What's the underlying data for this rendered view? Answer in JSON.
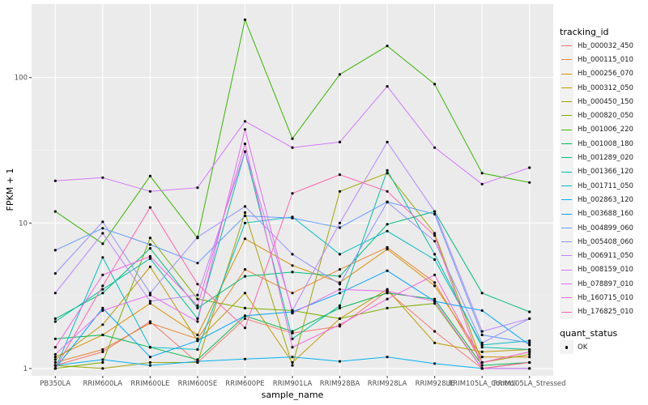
{
  "chart_data": {
    "type": "line",
    "xlabel": "sample_name",
    "ylabel": "FPKM + 1",
    "y_scale": "log10",
    "ylim": [
      0.89,
      320
    ],
    "y_ticks": [
      1,
      10,
      100
    ],
    "y_tick_labels": [
      "1",
      "10",
      "100"
    ],
    "grid": true,
    "legend_position": "right",
    "categories": [
      "PB350LA",
      "RRIM600LA",
      "RRIM600LE",
      "RRIM600SE",
      "RRIM600PE",
      "RRIM901LA",
      "RRIM928BA",
      "RRIM928LA",
      "RRIM928LE",
      "RRIM105LA_Control",
      "RRIM105LA_Stressed"
    ],
    "x_tick_labels": [
      "PB350LA",
      "RRIM600LA",
      "RRIM600LE",
      "RRIM600SE",
      "RRIM600PE",
      "RRIM901LA",
      "RRIM928BA",
      "RRIM928LA",
      "RRIM928LE",
      "RRIM105LA_Control",
      "RRIM105LA_Stressed"
    ],
    "series": [
      {
        "name": "Hb_000032_450",
        "color": "#F8766D",
        "values": [
          1.05,
          1.3,
          2.1,
          1.1,
          2.2,
          1.75,
          1.95,
          3.4,
          1.8,
          1.0,
          1.1
        ]
      },
      {
        "name": "Hb_000115_010",
        "color": "#EA8331",
        "values": [
          1.1,
          1.35,
          2.05,
          1.6,
          4.8,
          3.3,
          4.8,
          6.8,
          3.9,
          1.1,
          1.3
        ]
      },
      {
        "name": "Hb_000256_070",
        "color": "#D89000",
        "values": [
          1.2,
          1.7,
          2.8,
          1.7,
          7.8,
          5.1,
          3.9,
          6.6,
          3.7,
          1.2,
          1.2
        ]
      },
      {
        "name": "Hb_000312_050",
        "color": "#C09B00",
        "values": [
          1.15,
          2.0,
          5.0,
          1.55,
          3.3,
          1.1,
          2.2,
          3.5,
          1.5,
          1.3,
          1.35
        ]
      },
      {
        "name": "Hb_000450_150",
        "color": "#A3A500",
        "values": [
          1.05,
          1.0,
          1.1,
          1.1,
          11.8,
          1.05,
          16.5,
          22.0,
          8.5,
          1.1,
          1.25
        ]
      },
      {
        "name": "Hb_000820_050",
        "color": "#7CAE00",
        "values": [
          1.0,
          1.1,
          7.9,
          3.0,
          2.6,
          2.5,
          2.2,
          2.6,
          2.8,
          1.0,
          1.1
        ]
      },
      {
        "name": "Hb_001006_220",
        "color": "#39B600",
        "values": [
          12.0,
          7.2,
          21.0,
          7.9,
          250.0,
          38.0,
          105.0,
          165.0,
          90.0,
          22.0,
          19.0
        ]
      },
      {
        "name": "Hb_001008_180",
        "color": "#00BB4E",
        "values": [
          1.6,
          1.7,
          1.4,
          1.15,
          2.3,
          1.8,
          2.6,
          3.3,
          3.0,
          1.05,
          1.1
        ]
      },
      {
        "name": "Hb_001289_020",
        "color": "#00BF7D",
        "values": [
          2.2,
          3.3,
          6.7,
          2.6,
          4.3,
          4.6,
          4.3,
          9.8,
          12.0,
          3.3,
          2.45
        ]
      },
      {
        "name": "Hb_001366_120",
        "color": "#00C1A3",
        "values": [
          2.1,
          3.5,
          5.7,
          2.2,
          31.0,
          1.6,
          2.7,
          23.0,
          6.1,
          1.4,
          1.35
        ]
      },
      {
        "name": "Hb_001711_050",
        "color": "#00BFC4",
        "values": [
          1.0,
          5.8,
          1.4,
          1.35,
          10.0,
          11.0,
          6.1,
          8.8,
          5.6,
          1.45,
          1.55
        ]
      },
      {
        "name": "Hb_002863_120",
        "color": "#00B2F3",
        "values": [
          1.05,
          1.15,
          1.05,
          1.12,
          1.16,
          1.2,
          1.12,
          1.2,
          1.08,
          1.0,
          1.0
        ]
      },
      {
        "name": "Hb_003688_160",
        "color": "#00A5FF",
        "values": [
          1.0,
          2.6,
          1.2,
          1.55,
          2.3,
          2.45,
          3.3,
          4.7,
          2.9,
          2.5,
          1.45
        ]
      },
      {
        "name": "Hb_004899_060",
        "color": "#619CFF",
        "values": [
          6.5,
          9.2,
          7.1,
          5.3,
          11.2,
          10.8,
          9.3,
          14.0,
          11.5,
          1.7,
          1.5
        ]
      },
      {
        "name": "Hb_005408_060",
        "color": "#9590FF",
        "values": [
          4.5,
          10.2,
          3.3,
          8.0,
          13.0,
          6.1,
          3.8,
          13.9,
          7.5,
          1.5,
          2.2
        ]
      },
      {
        "name": "Hb_006911_050",
        "color": "#B983FF",
        "values": [
          3.3,
          8.5,
          2.9,
          3.2,
          31.0,
          2.5,
          10.0,
          36.0,
          12.0,
          1.8,
          2.2
        ]
      },
      {
        "name": "Hb_008159_010",
        "color": "#D575FE",
        "values": [
          19.5,
          20.5,
          16.5,
          17.5,
          50.0,
          33.0,
          36.0,
          87.0,
          33.0,
          18.5,
          24.0
        ]
      },
      {
        "name": "Hb_078897_010",
        "color": "#E76BF3",
        "values": [
          1.25,
          2.5,
          3.2,
          2.1,
          44.0,
          2.4,
          3.5,
          3.4,
          2.9,
          1.0,
          1.0
        ]
      },
      {
        "name": "Hb_160715_010",
        "color": "#F564E3",
        "values": [
          1.4,
          4.4,
          5.9,
          2.7,
          35.0,
          1.4,
          2.0,
          3.0,
          4.4,
          1.1,
          1.3
        ]
      },
      {
        "name": "Hb_176825_010",
        "color": "#FF64B0",
        "values": [
          1.0,
          3.7,
          12.8,
          3.8,
          1.9,
          16.0,
          21.5,
          16.5,
          8.2,
          1.0,
          1.1
        ]
      }
    ]
  },
  "legend": {
    "title": "tracking_id",
    "status_title": "quant_status",
    "status_item": "OK"
  }
}
